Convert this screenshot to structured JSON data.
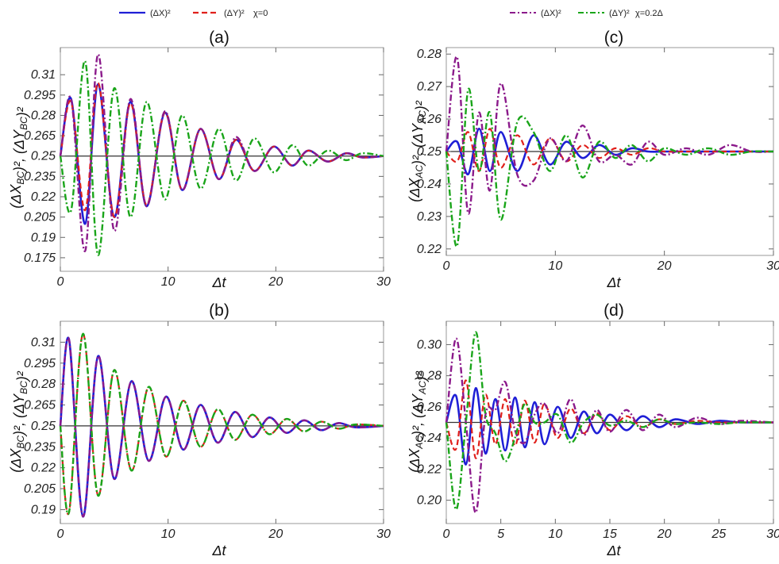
{
  "legends": [
    {
      "entries": [
        {
          "label": "(ΔX)²",
          "color": "#1f1fd6",
          "dash": "solid"
        },
        {
          "label": "(ΔY)²",
          "color": "#e0201b",
          "dash": "dashed"
        },
        {
          "label": "χ=0",
          "color": "",
          "dash": "none"
        }
      ]
    },
    {
      "entries": [
        {
          "label": "(ΔX)²",
          "color": "#8b1a8b",
          "dash": "dashdot"
        },
        {
          "label": "(ΔY)²",
          "color": "#1aa51a",
          "dash": "dashdot"
        },
        {
          "label": "χ=0.2Δ",
          "color": "",
          "dash": "none"
        }
      ]
    }
  ],
  "chart_data": [
    {
      "type": "line",
      "panel": "(a)",
      "xlabel": "Δt",
      "ylabel": "(ΔX_BC)², (ΔY_BC)²",
      "xlim": [
        0,
        30
      ],
      "ylim": [
        0.165,
        0.33
      ],
      "xticks": [
        "0",
        "10",
        "20",
        "30"
      ],
      "yticks": [
        "0.175",
        "0.19",
        "0.205",
        "0.22",
        "0.235",
        "0.25",
        "0.265",
        "0.28",
        "0.295",
        "0.31"
      ],
      "reference_line": 0.25,
      "x": [
        0,
        1,
        2.3,
        3.5,
        5,
        6.5,
        8,
        9.7,
        11.3,
        13,
        14.7,
        16.3,
        18,
        19.8,
        21.5,
        23,
        24.8,
        26.5,
        28,
        30
      ],
      "series": [
        {
          "name": "(ΔX)²",
          "color": "#1f1fd6",
          "style": "solid",
          "values": [
            0.25,
            0.292,
            0.2,
            0.303,
            0.205,
            0.29,
            0.213,
            0.282,
            0.225,
            0.27,
            0.233,
            0.262,
            0.239,
            0.257,
            0.243,
            0.254,
            0.246,
            0.252,
            0.249,
            0.25
          ]
        },
        {
          "name": "(ΔY)²",
          "color": "#e0201b",
          "style": "dashed",
          "values": [
            0.25,
            0.29,
            0.21,
            0.304,
            0.205,
            0.289,
            0.214,
            0.282,
            0.225,
            0.27,
            0.233,
            0.262,
            0.239,
            0.257,
            0.243,
            0.254,
            0.246,
            0.252,
            0.249,
            0.25
          ]
        },
        {
          "name": "(ΔX)²",
          "color": "#8b1a8b",
          "style": "dashdot",
          "values": [
            0.25,
            0.292,
            0.18,
            0.325,
            0.195,
            0.292,
            0.213,
            0.283,
            0.225,
            0.27,
            0.233,
            0.264,
            0.239,
            0.257,
            0.243,
            0.254,
            0.246,
            0.252,
            0.249,
            0.25
          ]
        },
        {
          "name": "(ΔY)²",
          "color": "#1aa51a",
          "style": "dashdot",
          "values": [
            0.25,
            0.21,
            0.32,
            0.177,
            0.3,
            0.205,
            0.29,
            0.218,
            0.28,
            0.226,
            0.27,
            0.232,
            0.263,
            0.238,
            0.258,
            0.243,
            0.254,
            0.247,
            0.252,
            0.25
          ]
        }
      ]
    },
    {
      "type": "line",
      "panel": "(b)",
      "xlabel": "Δt",
      "ylabel": "(ΔX_BC)², (ΔY_BC)²",
      "xlim": [
        0,
        30
      ],
      "ylim": [
        0.18,
        0.325
      ],
      "xticks": [
        "0",
        "10",
        "20",
        "30"
      ],
      "yticks": [
        "0.19",
        "0.205",
        "0.22",
        "0.235",
        "0.25",
        "0.265",
        "0.28",
        "0.295",
        "0.31"
      ],
      "reference_line": 0.25,
      "x": [
        0,
        0.8,
        2.1,
        3.5,
        5,
        6.6,
        8.2,
        9.8,
        11.4,
        13,
        14.6,
        16.2,
        17.8,
        19.4,
        21,
        22.6,
        24.2,
        25.8,
        27.4,
        30
      ],
      "series": [
        {
          "name": "(ΔX)²",
          "color": "#1f1fd6",
          "style": "solid",
          "values": [
            0.25,
            0.312,
            0.185,
            0.3,
            0.212,
            0.282,
            0.225,
            0.271,
            0.233,
            0.265,
            0.238,
            0.26,
            0.242,
            0.256,
            0.245,
            0.254,
            0.247,
            0.252,
            0.249,
            0.25
          ]
        },
        {
          "name": "(ΔY)²",
          "color": "#e0201b",
          "style": "dashed",
          "values": [
            0.25,
            0.188,
            0.316,
            0.2,
            0.29,
            0.218,
            0.278,
            0.228,
            0.268,
            0.235,
            0.262,
            0.24,
            0.258,
            0.244,
            0.255,
            0.246,
            0.253,
            0.248,
            0.251,
            0.25
          ]
        },
        {
          "name": "(ΔX)²",
          "color": "#8b1a8b",
          "style": "dashdot",
          "values": [
            0.25,
            0.312,
            0.185,
            0.3,
            0.212,
            0.282,
            0.225,
            0.271,
            0.233,
            0.265,
            0.238,
            0.26,
            0.242,
            0.256,
            0.245,
            0.254,
            0.247,
            0.252,
            0.249,
            0.25
          ]
        },
        {
          "name": "(ΔY)²",
          "color": "#1aa51a",
          "style": "dashdot",
          "values": [
            0.25,
            0.188,
            0.316,
            0.2,
            0.29,
            0.218,
            0.278,
            0.228,
            0.268,
            0.235,
            0.262,
            0.24,
            0.258,
            0.244,
            0.255,
            0.246,
            0.253,
            0.248,
            0.251,
            0.25
          ]
        }
      ]
    },
    {
      "type": "line",
      "panel": "(c)",
      "xlabel": "Δt",
      "ylabel": "(ΔX_AC)², (ΔY_AC)²",
      "xlim": [
        0,
        30
      ],
      "ylim": [
        0.218,
        0.282
      ],
      "xticks": [
        "0",
        "10",
        "20",
        "30"
      ],
      "yticks": [
        "0.22",
        "0.23",
        "0.24",
        "0.25",
        "0.26",
        "0.27",
        "0.28"
      ],
      "reference_line": 0.25,
      "x": [
        0,
        1,
        2,
        3,
        4,
        5,
        6.5,
        8,
        9.5,
        11,
        12.5,
        14,
        15.5,
        17,
        18.5,
        20,
        22,
        24,
        26,
        28,
        30
      ],
      "series": [
        {
          "name": "(ΔX)²",
          "color": "#1f1fd6",
          "style": "solid",
          "values": [
            0.25,
            0.253,
            0.243,
            0.257,
            0.244,
            0.256,
            0.244,
            0.255,
            0.246,
            0.253,
            0.248,
            0.252,
            0.249,
            0.251,
            0.25,
            0.25,
            0.25,
            0.25,
            0.25,
            0.25,
            0.25
          ]
        },
        {
          "name": "(ΔY)²",
          "color": "#e0201b",
          "style": "dashed",
          "values": [
            0.25,
            0.247,
            0.256,
            0.244,
            0.257,
            0.245,
            0.255,
            0.246,
            0.254,
            0.247,
            0.252,
            0.248,
            0.251,
            0.249,
            0.251,
            0.25,
            0.25,
            0.25,
            0.25,
            0.25,
            0.25
          ]
        },
        {
          "name": "(ΔX)²",
          "color": "#8b1a8b",
          "style": "dashdot",
          "values": [
            0.25,
            0.279,
            0.231,
            0.262,
            0.238,
            0.271,
            0.243,
            0.241,
            0.254,
            0.247,
            0.258,
            0.247,
            0.249,
            0.246,
            0.253,
            0.249,
            0.251,
            0.249,
            0.252,
            0.25,
            0.25
          ]
        },
        {
          "name": "(ΔY)²",
          "color": "#1aa51a",
          "style": "dashdot",
          "values": [
            0.25,
            0.221,
            0.269,
            0.244,
            0.262,
            0.229,
            0.259,
            0.256,
            0.244,
            0.255,
            0.242,
            0.253,
            0.248,
            0.252,
            0.247,
            0.251,
            0.249,
            0.251,
            0.249,
            0.25,
            0.25
          ]
        }
      ]
    },
    {
      "type": "line",
      "panel": "(d)",
      "xlabel": "Δt",
      "ylabel": "(ΔX_AC)², (ΔY_AC)²",
      "xlim": [
        0,
        30
      ],
      "ylim": [
        0.185,
        0.315
      ],
      "xticks": [
        "0",
        "5",
        "10",
        "15",
        "20",
        "25",
        "30"
      ],
      "yticks": [
        "0.20",
        "0.22",
        "0.24",
        "0.26",
        "0.28",
        "0.30"
      ],
      "reference_line": 0.25,
      "x": [
        0,
        0.9,
        1.8,
        2.7,
        3.6,
        4.5,
        5.4,
        6.3,
        7.2,
        8.1,
        9,
        10.2,
        11.4,
        12.6,
        13.8,
        15,
        16.5,
        18,
        19.5,
        21,
        23,
        25,
        27,
        30
      ],
      "series": [
        {
          "name": "(ΔX)²",
          "color": "#1f1fd6",
          "style": "solid",
          "values": [
            0.25,
            0.267,
            0.223,
            0.272,
            0.23,
            0.265,
            0.232,
            0.266,
            0.234,
            0.263,
            0.236,
            0.26,
            0.24,
            0.257,
            0.243,
            0.255,
            0.245,
            0.254,
            0.247,
            0.252,
            0.249,
            0.251,
            0.25,
            0.25
          ]
        },
        {
          "name": "(ΔY)²",
          "color": "#e0201b",
          "style": "dashed",
          "values": [
            0.25,
            0.233,
            0.277,
            0.227,
            0.268,
            0.236,
            0.265,
            0.235,
            0.264,
            0.237,
            0.262,
            0.24,
            0.259,
            0.243,
            0.256,
            0.245,
            0.254,
            0.247,
            0.252,
            0.249,
            0.251,
            0.25,
            0.25,
            0.25
          ]
        },
        {
          "name": "(ΔX)²",
          "color": "#8b1a8b",
          "style": "dashdot",
          "values": [
            0.25,
            0.304,
            0.25,
            0.192,
            0.255,
            0.258,
            0.276,
            0.245,
            0.237,
            0.255,
            0.262,
            0.243,
            0.265,
            0.242,
            0.258,
            0.244,
            0.258,
            0.245,
            0.255,
            0.247,
            0.253,
            0.249,
            0.251,
            0.25
          ]
        },
        {
          "name": "(ΔY)²",
          "color": "#1aa51a",
          "style": "dashdot",
          "values": [
            0.25,
            0.194,
            0.25,
            0.308,
            0.255,
            0.243,
            0.225,
            0.24,
            0.262,
            0.25,
            0.25,
            0.255,
            0.237,
            0.25,
            0.255,
            0.248,
            0.251,
            0.247,
            0.252,
            0.249,
            0.25,
            0.249,
            0.25,
            0.25
          ]
        }
      ]
    }
  ]
}
